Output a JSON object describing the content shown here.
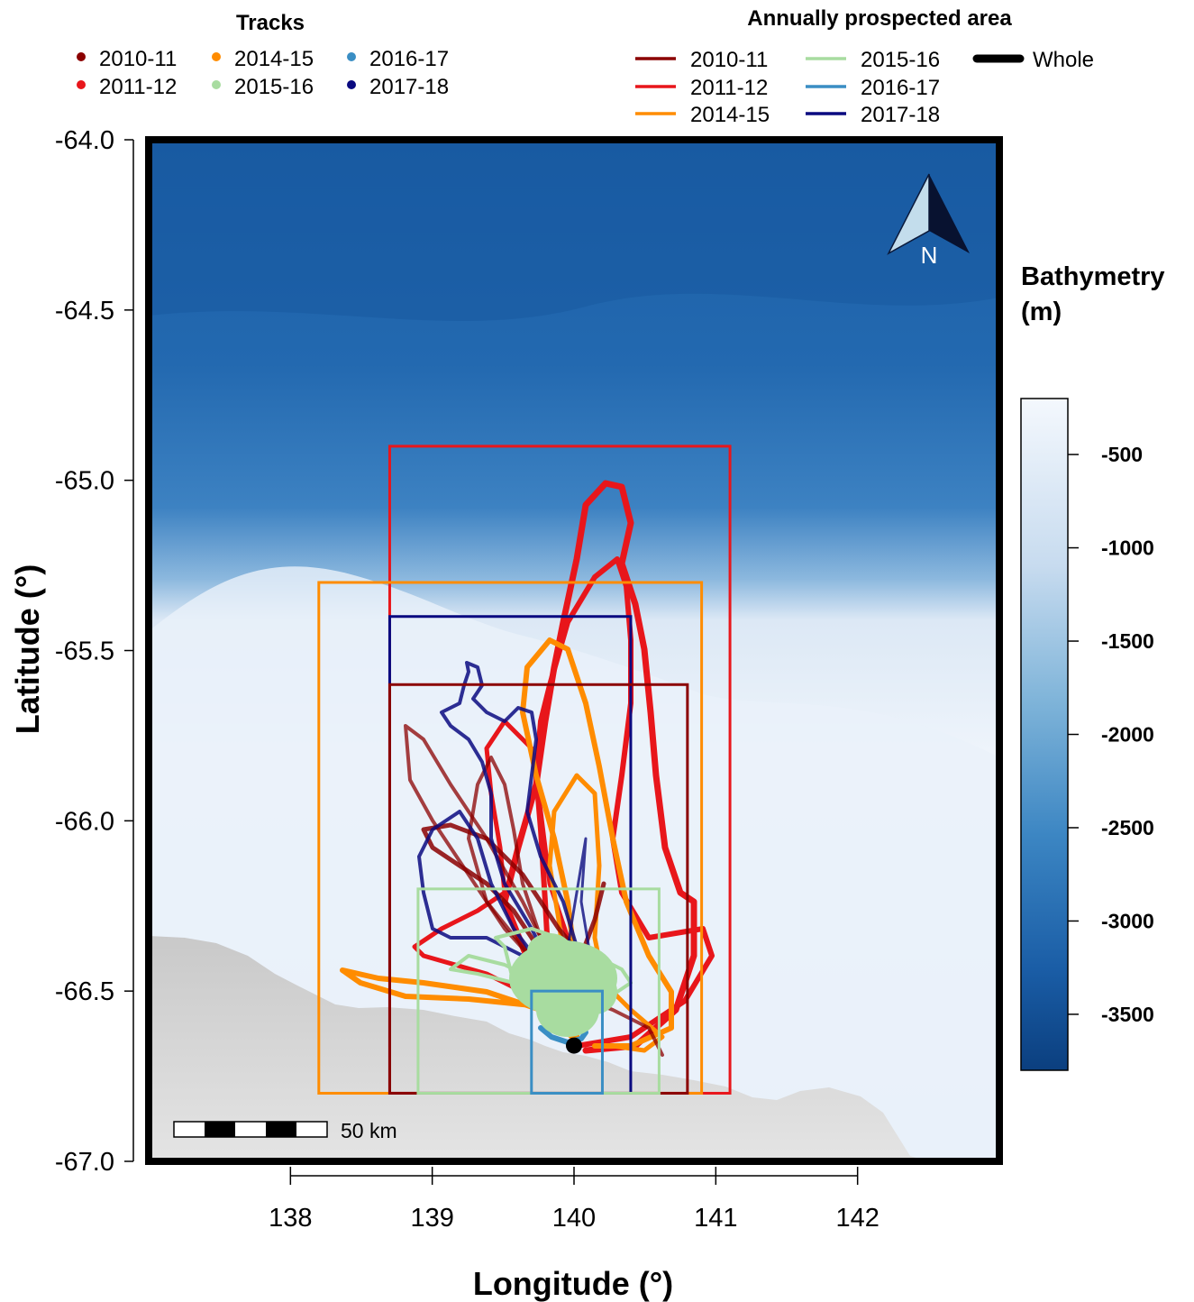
{
  "map": {
    "tracks_legend": {
      "title": "Tracks",
      "items": [
        {
          "label": "2010-11",
          "color": "#8b0000"
        },
        {
          "label": "2014-15",
          "color": "#ff8c00"
        },
        {
          "label": "2016-17",
          "color": "#3a8ec4"
        },
        {
          "label": "2011-12",
          "color": "#e8161b"
        },
        {
          "label": "2015-16",
          "color": "#a8dca0"
        },
        {
          "label": "2017-18",
          "color": "#0a0a80"
        }
      ]
    },
    "area_legend": {
      "title": "Annually prospected area",
      "items": [
        {
          "label": "2010-11",
          "color": "#8b0000"
        },
        {
          "label": "2011-12",
          "color": "#e8161b"
        },
        {
          "label": "2014-15",
          "color": "#ff8c00"
        },
        {
          "label": "2015-16",
          "color": "#a8dca0"
        },
        {
          "label": "2016-17",
          "color": "#3a8ec4"
        },
        {
          "label": "2017-18",
          "color": "#0a0a80"
        }
      ],
      "whole_label": "Whole",
      "whole_color": "#000000"
    },
    "xlabel": "Longitude (°)",
    "ylabel": "Latitude (°)",
    "xlim": [
      137.0,
      143.0
    ],
    "ylim": [
      -67.0,
      -64.0
    ],
    "x_ticks": [
      138,
      139,
      140,
      141,
      142
    ],
    "y_ticks": [
      "-64.0",
      "-64.5",
      "-65.0",
      "-65.5",
      "-66.0",
      "-66.5",
      "-67.0"
    ],
    "north_label": "N",
    "scale_bar_label": "50 km",
    "colorbar": {
      "title_line1": "Bathymetry",
      "title_line2": "(m)",
      "ticks": [
        "-500",
        "-1000",
        "-1500",
        "-2000",
        "-2500",
        "-3000",
        "-3500"
      ],
      "range": [
        -3800,
        -200
      ],
      "color_shallow": "#f4f8fd",
      "color_deep": "#0b3f7f"
    },
    "colony": {
      "lon": 140.0,
      "lat": -66.66
    },
    "areas": [
      {
        "season": "2011-12",
        "color": "#e8161b",
        "lon": [
          138.7,
          141.1
        ],
        "lat": [
          -66.8,
          -64.9
        ]
      },
      {
        "season": "2014-15",
        "color": "#ff8c00",
        "lon": [
          138.2,
          140.9
        ],
        "lat": [
          -66.8,
          -65.3
        ]
      },
      {
        "season": "2017-18",
        "color": "#0a0a80",
        "lon": [
          138.7,
          140.4
        ],
        "lat": [
          -66.8,
          -65.4
        ]
      },
      {
        "season": "2010-11",
        "color": "#8b0000",
        "lon": [
          138.7,
          140.8
        ],
        "lat": [
          -66.8,
          -65.6
        ]
      },
      {
        "season": "2015-16",
        "color": "#a8dca0",
        "lon": [
          138.9,
          140.6
        ],
        "lat": [
          -66.8,
          -66.2
        ]
      },
      {
        "season": "2016-17",
        "color": "#3a8ec4",
        "lon": [
          139.7,
          140.2
        ],
        "lat": [
          -66.8,
          -66.5
        ]
      }
    ]
  }
}
